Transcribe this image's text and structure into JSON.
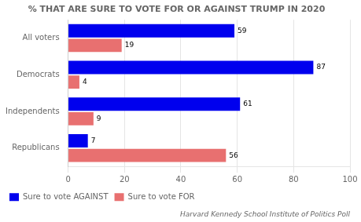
{
  "chart_data": {
    "type": "bar",
    "orientation": "horizontal",
    "title": "% THAT ARE SURE TO VOTE FOR OR AGAINST TRUMP IN 2020",
    "categories": [
      "All voters",
      "Democrats",
      "Independents",
      "Republicans"
    ],
    "series": [
      {
        "name": "Sure to vote AGAINST",
        "color": "#0000EE",
        "values": [
          59,
          87,
          61,
          7
        ]
      },
      {
        "name": "Sure to vote FOR",
        "color": "#E87070",
        "values": [
          19,
          4,
          9,
          56
        ]
      }
    ],
    "xlim": [
      0,
      100
    ],
    "xticks": [
      0,
      20,
      40,
      60,
      80,
      100
    ],
    "grid": true,
    "legend": "bottom",
    "data_labels": true,
    "annotations": [
      "Harvard Kennedy School Institute of Politics Poll"
    ]
  }
}
